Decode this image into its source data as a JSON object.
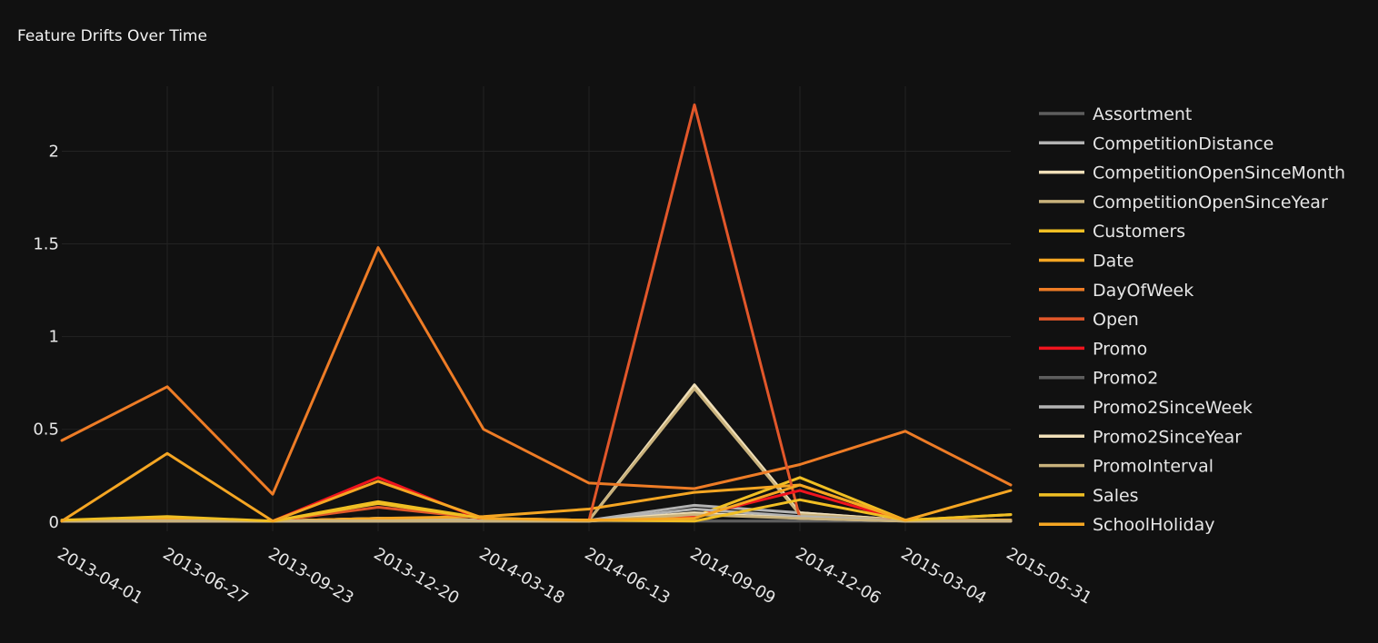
{
  "chart_data": {
    "type": "line",
    "title": "Feature Drifts Over Time",
    "xlabel": "",
    "ylabel": "",
    "x": [
      "2013-04-01",
      "2013-06-27",
      "2013-09-23",
      "2013-12-20",
      "2014-03-18",
      "2014-06-13",
      "2014-09-09",
      "2014-12-06",
      "2015-03-04",
      "2015-05-31"
    ],
    "ylim": [
      -0.05,
      2.35
    ],
    "yticks": [
      0,
      0.5,
      1,
      1.5,
      2
    ],
    "ytick_labels": [
      "0",
      "0.5",
      "1",
      "1.5",
      "2"
    ],
    "grid": true,
    "legend_position": "right",
    "series": [
      {
        "name": "Assortment",
        "color": "#5e5e5e",
        "values": [
          0.005,
          0.005,
          0.005,
          0.005,
          0.005,
          0.005,
          0.005,
          0.005,
          0.005,
          0.005
        ]
      },
      {
        "name": "CompetitionDistance",
        "color": "#b3b3b3",
        "values": [
          0.005,
          0.01,
          0.005,
          0.02,
          0.01,
          0.01,
          0.09,
          0.05,
          0.01,
          0.01
        ]
      },
      {
        "name": "CompetitionOpenSinceMonth",
        "color": "#f0dfb8",
        "values": [
          0.005,
          0.01,
          0.005,
          0.02,
          0.01,
          0.01,
          0.74,
          0.05,
          0.01,
          0.01
        ]
      },
      {
        "name": "CompetitionOpenSinceYear",
        "color": "#c9b27c",
        "values": [
          0.005,
          0.01,
          0.005,
          0.02,
          0.01,
          0.01,
          0.72,
          0.04,
          0.01,
          0.01
        ]
      },
      {
        "name": "Customers",
        "color": "#f0bf24",
        "values": [
          0.01,
          0.02,
          0.005,
          0.11,
          0.02,
          0.01,
          0.03,
          0.24,
          0.01,
          0.04
        ]
      },
      {
        "name": "Date",
        "color": "#f5a623",
        "values": [
          0.005,
          0.02,
          0.005,
          0.02,
          0.03,
          0.07,
          0.16,
          0.2,
          0.01,
          0.01
        ]
      },
      {
        "name": "DayOfWeek",
        "color": "#ee7c26",
        "values": [
          0.44,
          0.73,
          0.15,
          1.48,
          0.5,
          0.21,
          0.18,
          0.31,
          0.49,
          0.2
        ]
      },
      {
        "name": "Open",
        "color": "#e2572a",
        "values": [
          0.005,
          0.005,
          0.005,
          0.08,
          0.02,
          0.01,
          2.25,
          0.02,
          0.01,
          0.005
        ]
      },
      {
        "name": "Promo",
        "color": "#f0141e",
        "values": [
          0.005,
          0.005,
          0.005,
          0.24,
          0.01,
          0.01,
          0.03,
          0.17,
          0.005,
          0.005
        ]
      },
      {
        "name": "Promo2",
        "color": "#5e5e5e",
        "values": [
          0.005,
          0.005,
          0.005,
          0.005,
          0.005,
          0.005,
          0.005,
          0.005,
          0.005,
          0.005
        ]
      },
      {
        "name": "Promo2SinceWeek",
        "color": "#b3b3b3",
        "values": [
          0.005,
          0.005,
          0.005,
          0.005,
          0.005,
          0.005,
          0.07,
          0.03,
          0.005,
          0.005
        ]
      },
      {
        "name": "Promo2SinceYear",
        "color": "#f0dfb8",
        "values": [
          0.005,
          0.005,
          0.005,
          0.005,
          0.005,
          0.005,
          0.05,
          0.02,
          0.005,
          0.005
        ]
      },
      {
        "name": "PromoInterval",
        "color": "#c9b27c",
        "values": [
          0.005,
          0.005,
          0.005,
          0.005,
          0.005,
          0.005,
          0.04,
          0.02,
          0.005,
          0.005
        ]
      },
      {
        "name": "Sales",
        "color": "#f0bf24",
        "values": [
          0.01,
          0.03,
          0.005,
          0.1,
          0.02,
          0.01,
          0.005,
          0.12,
          0.01,
          0.04
        ]
      },
      {
        "name": "SchoolHoliday",
        "color": "#f5a623",
        "values": [
          0.005,
          0.37,
          0.005,
          0.22,
          0.02,
          0.01,
          0.02,
          0.2,
          0.01,
          0.17
        ]
      }
    ]
  }
}
